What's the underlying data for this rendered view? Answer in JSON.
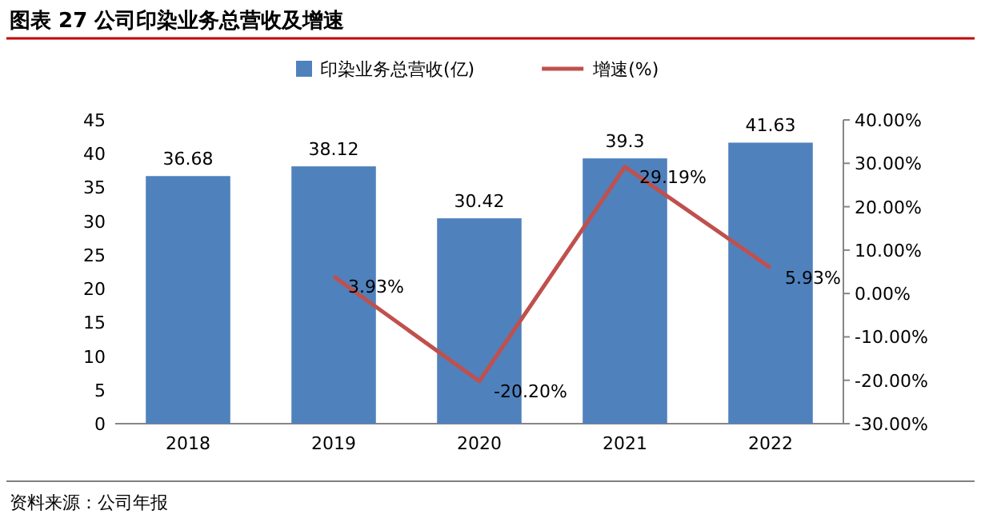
{
  "chart_data": {
    "type": "bar",
    "title": "图表 27 公司印染业务总营收及增速",
    "categories": [
      "2018",
      "2019",
      "2020",
      "2021",
      "2022"
    ],
    "series": [
      {
        "name": "印染业务总营收(亿)",
        "color": "#4f81bd",
        "values": [
          36.68,
          38.12,
          30.42,
          39.3,
          41.63
        ],
        "value_labels": [
          "36.68",
          "38.12",
          "30.42",
          "39.3",
          "41.63"
        ]
      },
      {
        "name": "增速(%)",
        "type": "line",
        "axis": "y2",
        "color": "#c0504d",
        "values": [
          null,
          3.93,
          -20.2,
          29.19,
          5.93
        ],
        "value_labels": [
          null,
          "3.93%",
          "-20.20%",
          "29.19%",
          "5.93%"
        ]
      }
    ],
    "ylim": [
      0,
      45
    ],
    "yticks": [
      0,
      5,
      10,
      15,
      20,
      25,
      30,
      35,
      40,
      45
    ],
    "y2lim": [
      -30,
      40
    ],
    "y2ticks": [
      {
        "value": -30,
        "label": "-30.00%"
      },
      {
        "value": -20,
        "label": "-20.00%"
      },
      {
        "value": -10,
        "label": "-10.00%"
      },
      {
        "value": 0,
        "label": "0.00%"
      },
      {
        "value": 10,
        "label": "10.00%"
      },
      {
        "value": 20,
        "label": "20.00%"
      },
      {
        "value": 30,
        "label": "30.00%"
      },
      {
        "value": 40,
        "label": "40.00%"
      }
    ],
    "legend": "top",
    "grid": false,
    "annotations": [
      "资料来源：公司年报"
    ]
  }
}
